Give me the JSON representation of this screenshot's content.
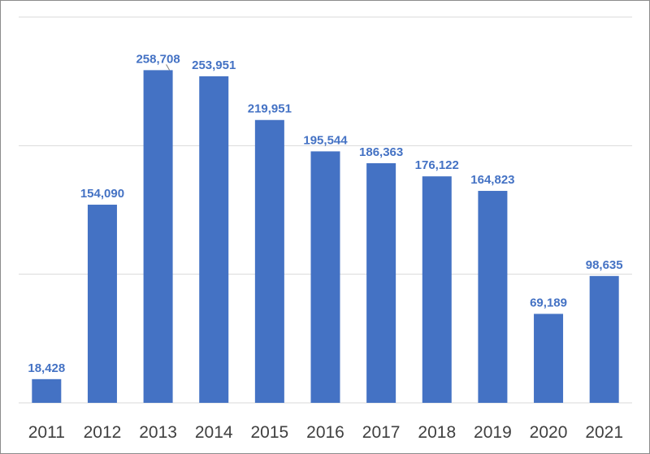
{
  "chart_data": {
    "type": "bar",
    "title": "",
    "xlabel": "",
    "ylabel": "",
    "categories": [
      "2011",
      "2012",
      "2013",
      "2014",
      "2015",
      "2016",
      "2017",
      "2018",
      "2019",
      "2020",
      "2021"
    ],
    "values": [
      18428,
      154090,
      258708,
      253951,
      219951,
      195544,
      186363,
      176122,
      164823,
      69189,
      98635
    ],
    "value_labels": [
      "18,428",
      "154,090",
      "258,708",
      "253,951",
      "219,951",
      "195,544",
      "186,363",
      "176,122",
      "164,823",
      "69,189",
      "98,635"
    ],
    "ylim": [
      0,
      300000
    ],
    "gridlines": [
      0,
      100000,
      200000,
      300000
    ],
    "grid": true,
    "y_tick_labels_visible": false,
    "legend": "none",
    "colors": {
      "bar": "#4472c4",
      "data_label": "#4472c4",
      "gridline": "#d9d9d9",
      "tick_label": "#404040",
      "frame": "#8c8c8c"
    }
  }
}
